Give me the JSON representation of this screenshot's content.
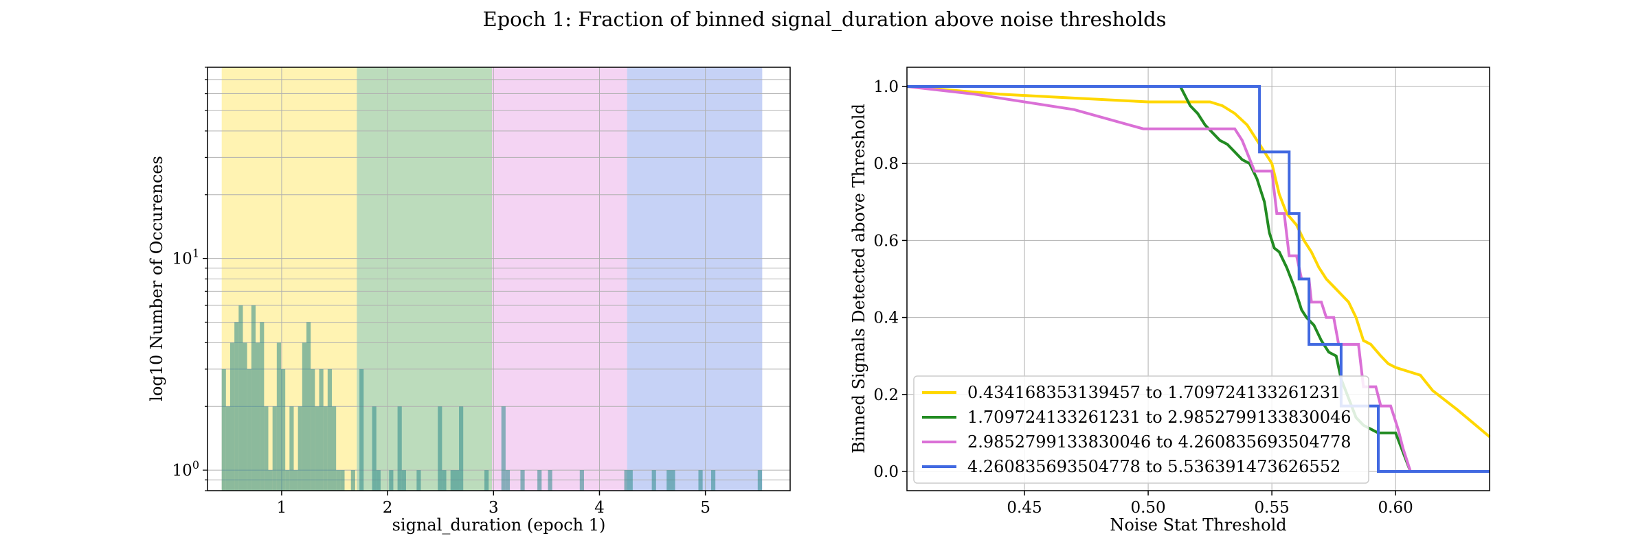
{
  "figure": {
    "title": "Epoch 1: Fraction of binned signal_duration above noise thresholds"
  },
  "colors": {
    "yellow": "#FFD700",
    "green": "#228B22",
    "violet": "#DA70D6",
    "blue": "#4169E1",
    "hist_bar": "#2E8B8B",
    "grid": "#b0b0b0"
  },
  "chart_data": [
    {
      "type": "bar",
      "title": "",
      "xlabel": "signal_duration (epoch 1)",
      "ylabel": "log10 Number of Occurences",
      "yscale": "log",
      "xlim": [
        0.3,
        5.8
      ],
      "ylim": [
        0.8,
        80
      ],
      "xticks": [
        1,
        2,
        3,
        4,
        5
      ],
      "yticks": [
        {
          "value": 1,
          "label": "10^0"
        },
        {
          "value": 10,
          "label": "10^1"
        }
      ],
      "grid": true,
      "bands": [
        {
          "from": 0.434168353139457,
          "to": 1.709724133261231,
          "color": "yellow"
        },
        {
          "from": 1.709724133261231,
          "to": 2.9852799133830046,
          "color": "green"
        },
        {
          "from": 2.9852799133830046,
          "to": 4.260835693504778,
          "color": "violet"
        },
        {
          "from": 4.260835693504778,
          "to": 5.536391473626552,
          "color": "blue"
        }
      ],
      "bins": [
        {
          "x0": 0.434,
          "x1": 0.474,
          "count": 3
        },
        {
          "x0": 0.474,
          "x1": 0.514,
          "count": 2
        },
        {
          "x0": 0.514,
          "x1": 0.554,
          "count": 4
        },
        {
          "x0": 0.554,
          "x1": 0.594,
          "count": 5
        },
        {
          "x0": 0.594,
          "x1": 0.634,
          "count": 6
        },
        {
          "x0": 0.634,
          "x1": 0.674,
          "count": 4
        },
        {
          "x0": 0.674,
          "x1": 0.714,
          "count": 3
        },
        {
          "x0": 0.714,
          "x1": 0.754,
          "count": 6
        },
        {
          "x0": 0.754,
          "x1": 0.794,
          "count": 4
        },
        {
          "x0": 0.794,
          "x1": 0.834,
          "count": 5
        },
        {
          "x0": 0.834,
          "x1": 0.874,
          "count": 2
        },
        {
          "x0": 0.874,
          "x1": 0.914,
          "count": 1
        },
        {
          "x0": 0.914,
          "x1": 0.954,
          "count": 2
        },
        {
          "x0": 0.954,
          "x1": 0.994,
          "count": 4
        },
        {
          "x0": 0.994,
          "x1": 1.034,
          "count": 3
        },
        {
          "x0": 1.034,
          "x1": 1.074,
          "count": 1
        },
        {
          "x0": 1.074,
          "x1": 1.114,
          "count": 2
        },
        {
          "x0": 1.114,
          "x1": 1.154,
          "count": 1
        },
        {
          "x0": 1.154,
          "x1": 1.194,
          "count": 2
        },
        {
          "x0": 1.194,
          "x1": 1.234,
          "count": 4
        },
        {
          "x0": 1.234,
          "x1": 1.274,
          "count": 5
        },
        {
          "x0": 1.274,
          "x1": 1.314,
          "count": 3
        },
        {
          "x0": 1.314,
          "x1": 1.354,
          "count": 2
        },
        {
          "x0": 1.354,
          "x1": 1.394,
          "count": 3
        },
        {
          "x0": 1.394,
          "x1": 1.434,
          "count": 2
        },
        {
          "x0": 1.434,
          "x1": 1.474,
          "count": 3
        },
        {
          "x0": 1.474,
          "x1": 1.514,
          "count": 2
        },
        {
          "x0": 1.514,
          "x1": 1.554,
          "count": 1
        },
        {
          "x0": 1.554,
          "x1": 1.594,
          "count": 1
        },
        {
          "x0": 1.654,
          "x1": 1.694,
          "count": 1
        },
        {
          "x0": 1.734,
          "x1": 1.774,
          "count": 3
        },
        {
          "x0": 1.854,
          "x1": 1.894,
          "count": 2
        },
        {
          "x0": 1.894,
          "x1": 1.934,
          "count": 1
        },
        {
          "x0": 2.014,
          "x1": 2.054,
          "count": 1
        },
        {
          "x0": 2.094,
          "x1": 2.134,
          "count": 2
        },
        {
          "x0": 2.134,
          "x1": 2.174,
          "count": 1
        },
        {
          "x0": 2.274,
          "x1": 2.314,
          "count": 1
        },
        {
          "x0": 2.474,
          "x1": 2.514,
          "count": 2
        },
        {
          "x0": 2.514,
          "x1": 2.554,
          "count": 1
        },
        {
          "x0": 2.594,
          "x1": 2.674,
          "count": 1
        },
        {
          "x0": 2.674,
          "x1": 2.714,
          "count": 2
        },
        {
          "x0": 2.914,
          "x1": 2.954,
          "count": 1
        },
        {
          "x0": 3.074,
          "x1": 3.114,
          "count": 2
        },
        {
          "x0": 3.114,
          "x1": 3.154,
          "count": 1
        },
        {
          "x0": 3.254,
          "x1": 3.294,
          "count": 1
        },
        {
          "x0": 3.414,
          "x1": 3.454,
          "count": 1
        },
        {
          "x0": 3.514,
          "x1": 3.554,
          "count": 1
        },
        {
          "x0": 3.814,
          "x1": 3.854,
          "count": 1
        },
        {
          "x0": 4.234,
          "x1": 4.314,
          "count": 1
        },
        {
          "x0": 4.494,
          "x1": 4.534,
          "count": 1
        },
        {
          "x0": 4.634,
          "x1": 4.714,
          "count": 1
        },
        {
          "x0": 4.934,
          "x1": 4.974,
          "count": 1
        },
        {
          "x0": 5.054,
          "x1": 5.094,
          "count": 1
        },
        {
          "x0": 5.494,
          "x1": 5.534,
          "count": 1
        }
      ]
    },
    {
      "type": "line",
      "title": "",
      "xlabel": "Noise Stat Threshold",
      "ylabel": "Binned Signals Detected above Threshold",
      "xlim": [
        0.4025,
        0.638
      ],
      "ylim": [
        -0.05,
        1.05
      ],
      "xticks": [
        "0.45",
        "0.50",
        "0.55",
        "0.60"
      ],
      "yticks": [
        "0.0",
        "0.2",
        "0.4",
        "0.6",
        "0.8",
        "1.0"
      ],
      "grid": true,
      "legend_position": "lower-left",
      "series": [
        {
          "name": "0.434168353139457 to 1.709724133261231",
          "color": "yellow",
          "points": [
            [
              0.4025,
              1.0
            ],
            [
              0.44,
              0.98
            ],
            [
              0.5,
              0.96
            ],
            [
              0.525,
              0.96
            ],
            [
              0.53,
              0.95
            ],
            [
              0.535,
              0.93
            ],
            [
              0.54,
              0.9
            ],
            [
              0.545,
              0.85
            ],
            [
              0.55,
              0.8
            ],
            [
              0.553,
              0.72
            ],
            [
              0.556,
              0.67
            ],
            [
              0.56,
              0.64
            ],
            [
              0.563,
              0.6
            ],
            [
              0.566,
              0.57
            ],
            [
              0.569,
              0.53
            ],
            [
              0.572,
              0.5
            ],
            [
              0.575,
              0.48
            ],
            [
              0.578,
              0.46
            ],
            [
              0.581,
              0.44
            ],
            [
              0.584,
              0.4
            ],
            [
              0.587,
              0.34
            ],
            [
              0.59,
              0.33
            ],
            [
              0.594,
              0.3
            ],
            [
              0.597,
              0.28
            ],
            [
              0.6,
              0.27
            ],
            [
              0.605,
              0.26
            ],
            [
              0.61,
              0.25
            ],
            [
              0.615,
              0.21
            ],
            [
              0.625,
              0.16
            ],
            [
              0.638,
              0.09
            ]
          ]
        },
        {
          "name": "1.709724133261231 to 2.9852799133830046",
          "color": "green",
          "points": [
            [
              0.4025,
              1.0
            ],
            [
              0.513,
              1.0
            ],
            [
              0.517,
              0.95
            ],
            [
              0.52,
              0.93
            ],
            [
              0.523,
              0.9
            ],
            [
              0.526,
              0.88
            ],
            [
              0.529,
              0.86
            ],
            [
              0.532,
              0.85
            ],
            [
              0.535,
              0.83
            ],
            [
              0.538,
              0.81
            ],
            [
              0.541,
              0.8
            ],
            [
              0.544,
              0.76
            ],
            [
              0.547,
              0.7
            ],
            [
              0.549,
              0.62
            ],
            [
              0.551,
              0.58
            ],
            [
              0.553,
              0.57
            ],
            [
              0.556,
              0.53
            ],
            [
              0.559,
              0.48
            ],
            [
              0.562,
              0.42
            ],
            [
              0.564,
              0.4
            ],
            [
              0.567,
              0.38
            ],
            [
              0.57,
              0.34
            ],
            [
              0.573,
              0.31
            ],
            [
              0.576,
              0.3
            ],
            [
              0.578,
              0.24
            ],
            [
              0.581,
              0.19
            ],
            [
              0.584,
              0.14
            ],
            [
              0.587,
              0.12
            ],
            [
              0.59,
              0.11
            ],
            [
              0.593,
              0.1
            ],
            [
              0.6,
              0.1
            ],
            [
              0.603,
              0.05
            ],
            [
              0.606,
              0.0
            ],
            [
              0.638,
              0.0
            ]
          ]
        },
        {
          "name": "2.9852799133830046 to 4.260835693504778",
          "color": "violet",
          "points": [
            [
              0.4025,
              1.0
            ],
            [
              0.43,
              0.98
            ],
            [
              0.47,
              0.94
            ],
            [
              0.498,
              0.89
            ],
            [
              0.535,
              0.89
            ],
            [
              0.538,
              0.86
            ],
            [
              0.543,
              0.78
            ],
            [
              0.55,
              0.78
            ],
            [
              0.552,
              0.67
            ],
            [
              0.555,
              0.67
            ],
            [
              0.557,
              0.56
            ],
            [
              0.56,
              0.56
            ],
            [
              0.562,
              0.5
            ],
            [
              0.565,
              0.5
            ],
            [
              0.566,
              0.44
            ],
            [
              0.57,
              0.44
            ],
            [
              0.572,
              0.4
            ],
            [
              0.575,
              0.4
            ],
            [
              0.577,
              0.33
            ],
            [
              0.585,
              0.33
            ],
            [
              0.587,
              0.22
            ],
            [
              0.592,
              0.22
            ],
            [
              0.594,
              0.17
            ],
            [
              0.598,
              0.17
            ],
            [
              0.601,
              0.11
            ],
            [
              0.603,
              0.06
            ],
            [
              0.606,
              0.0
            ],
            [
              0.638,
              0.0
            ]
          ]
        },
        {
          "name": "4.260835693504778 to 5.536391473626552",
          "color": "blue",
          "points": [
            [
              0.4025,
              1.0
            ],
            [
              0.545,
              1.0
            ],
            [
              0.545,
              0.83
            ],
            [
              0.557,
              0.83
            ],
            [
              0.557,
              0.67
            ],
            [
              0.561,
              0.67
            ],
            [
              0.561,
              0.5
            ],
            [
              0.565,
              0.5
            ],
            [
              0.565,
              0.33
            ],
            [
              0.578,
              0.33
            ],
            [
              0.578,
              0.17
            ],
            [
              0.593,
              0.17
            ],
            [
              0.593,
              0.0
            ],
            [
              0.638,
              0.0
            ]
          ]
        }
      ]
    }
  ]
}
